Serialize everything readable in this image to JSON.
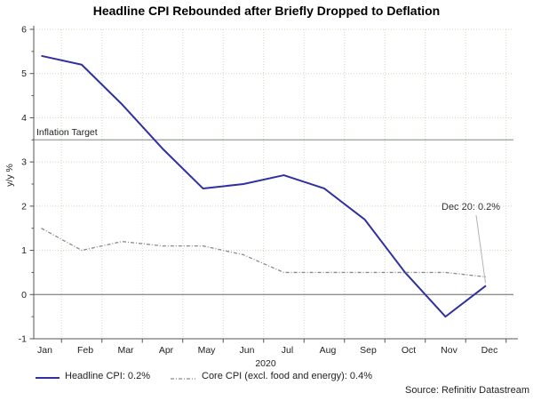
{
  "title": "Headline CPI Rebounded after Briefly Dropped to Deflation",
  "source": "Source: Refinitiv Datastream",
  "chart_data": {
    "type": "line",
    "title": "Headline CPI Rebounded after Briefly Dropped to Deflation",
    "ylabel": "y/y %",
    "xlabel": "2020",
    "ylim": [
      -1,
      6
    ],
    "yticks": [
      6,
      5,
      4,
      3,
      2,
      1,
      0,
      -1
    ],
    "grid": true,
    "legend_position": "bottom",
    "categories": [
      "Jan",
      "Feb",
      "Mar",
      "Apr",
      "May",
      "Jun",
      "Jul",
      "Aug",
      "Sep",
      "Oct",
      "Nov",
      "Dec"
    ],
    "series": [
      {
        "name": "Headline CPI: 0.2%",
        "color": "#3030a0",
        "style": "solid",
        "values": [
          5.4,
          5.2,
          4.3,
          3.3,
          2.4,
          2.5,
          2.7,
          2.4,
          1.7,
          0.5,
          -0.5,
          0.2
        ]
      },
      {
        "name": "Core CPI (excl. food and energy): 0.4%",
        "color": "#8a8a8a",
        "style": "dashdot",
        "values": [
          1.5,
          1.0,
          1.2,
          1.1,
          1.1,
          0.9,
          0.5,
          0.5,
          0.5,
          0.5,
          0.5,
          0.4
        ]
      }
    ],
    "reference_lines": [
      {
        "label": "Inflation Target",
        "value": 3.5,
        "color": "#a2aaa0"
      },
      {
        "label": "",
        "value": 0,
        "color": "#8f8f8f"
      }
    ],
    "annotation": {
      "text": "Dec 20: 0.2%",
      "target_month": "Dec",
      "target_value": 0.2
    },
    "grid_colors": {
      "horizontal": "#d9d1b8",
      "vertical": "#c9dcc9"
    }
  }
}
